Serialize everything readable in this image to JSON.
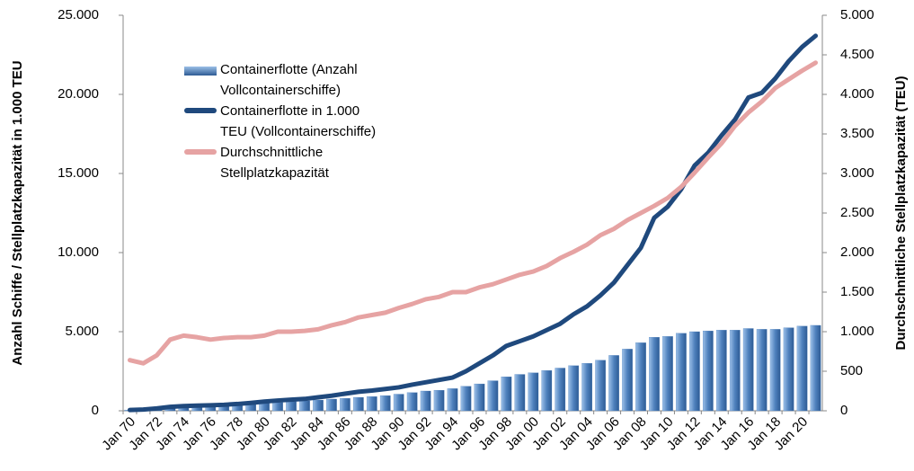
{
  "chart_data": {
    "type": "bar",
    "categories": [
      "Jan 70",
      null,
      "Jan 72",
      null,
      "Jan 74",
      null,
      "Jan 76",
      null,
      "Jan 78",
      null,
      "Jan 80",
      null,
      "Jan 82",
      null,
      "Jan 84",
      null,
      "Jan 86",
      null,
      "Jan 88",
      null,
      "Jan 90",
      null,
      "Jan 92",
      null,
      "Jan 94",
      null,
      "Jan 96",
      null,
      "Jan 98",
      null,
      "Jan 00",
      null,
      "Jan 02",
      null,
      "Jan 04",
      null,
      "Jan 06",
      null,
      "Jan 08",
      null,
      "Jan 10",
      null,
      "Jan 12",
      null,
      "Jan 14",
      null,
      "Jan 16",
      null,
      "Jan 18",
      null,
      "Jan 20",
      null
    ],
    "series": [
      {
        "name": "Containerflotte (Anzahl Vollcontainerschiffe)",
        "type": "bar",
        "color": "#4f81bd",
        "values": [
          50,
          80,
          120,
          160,
          200,
          240,
          280,
          330,
          380,
          430,
          480,
          530,
          580,
          630,
          680,
          740,
          790,
          850,
          900,
          960,
          1050,
          1150,
          1250,
          1300,
          1400,
          1550,
          1700,
          1900,
          2150,
          2300,
          2400,
          2550,
          2700,
          2850,
          3000,
          3200,
          3500,
          3900,
          4300,
          4650,
          4700,
          4900,
          5000,
          5050,
          5100,
          5100,
          5200,
          5150,
          5150,
          5250,
          5350,
          5400
        ]
      },
      {
        "name": "Containerflotte in 1.000 TEU (Vollcontainerschiffe)",
        "type": "line",
        "color": "#1f497d",
        "values": [
          50,
          80,
          150,
          250,
          300,
          330,
          350,
          380,
          430,
          500,
          580,
          650,
          700,
          750,
          850,
          950,
          1080,
          1200,
          1280,
          1380,
          1480,
          1650,
          1800,
          1950,
          2100,
          2500,
          3000,
          3500,
          4100,
          4400,
          4700,
          5100,
          5500,
          6100,
          6600,
          7300,
          8100,
          9200,
          10300,
          12200,
          12900,
          14000,
          15500,
          16300,
          17400,
          18400,
          19800,
          20100,
          21000,
          22100,
          23000,
          23700
        ]
      },
      {
        "name": "Durchschnittliche Stellplatzkapazität",
        "type": "line",
        "axis": "y2",
        "color": "#e6a3a3",
        "values": [
          640,
          600,
          700,
          900,
          950,
          930,
          900,
          920,
          930,
          930,
          950,
          1000,
          1000,
          1010,
          1030,
          1080,
          1120,
          1180,
          1210,
          1240,
          1300,
          1350,
          1410,
          1440,
          1500,
          1500,
          1560,
          1600,
          1660,
          1720,
          1760,
          1830,
          1930,
          2010,
          2100,
          2220,
          2300,
          2410,
          2500,
          2590,
          2690,
          2830,
          3010,
          3200,
          3380,
          3600,
          3770,
          3910,
          4080,
          4190,
          4300,
          4400
        ]
      }
    ],
    "ylabel": "Anzahl Schiffe / Stellplatzkapazität in 1.000 TEU",
    "y2label": "Durchschnittliche Stellplatzkapazität (TEU)",
    "ylim": [
      0,
      25000
    ],
    "yticks": [
      0,
      {
        "value": 5000,
        "label": "5.000"
      },
      {
        "value": 10000,
        "label": "10.000"
      },
      {
        "value": 15000,
        "label": "15.000"
      },
      {
        "value": 20000,
        "label": "20.000"
      },
      {
        "value": 25000,
        "label": "25.000"
      }
    ],
    "y2lim": [
      0,
      5000
    ],
    "y2ticks": [
      0,
      500,
      {
        "value": 1000,
        "label": "1.000"
      },
      {
        "value": 1500,
        "label": "1.500"
      },
      {
        "value": 2000,
        "label": "2.000"
      },
      {
        "value": 2500,
        "label": "2.500"
      },
      {
        "value": 3000,
        "label": "3.000"
      },
      {
        "value": 3500,
        "label": "3.500"
      },
      {
        "value": 4000,
        "label": "4.000"
      },
      {
        "value": 4500,
        "label": "4.500"
      },
      {
        "value": 5000,
        "label": "5.000"
      }
    ],
    "grid": false
  }
}
